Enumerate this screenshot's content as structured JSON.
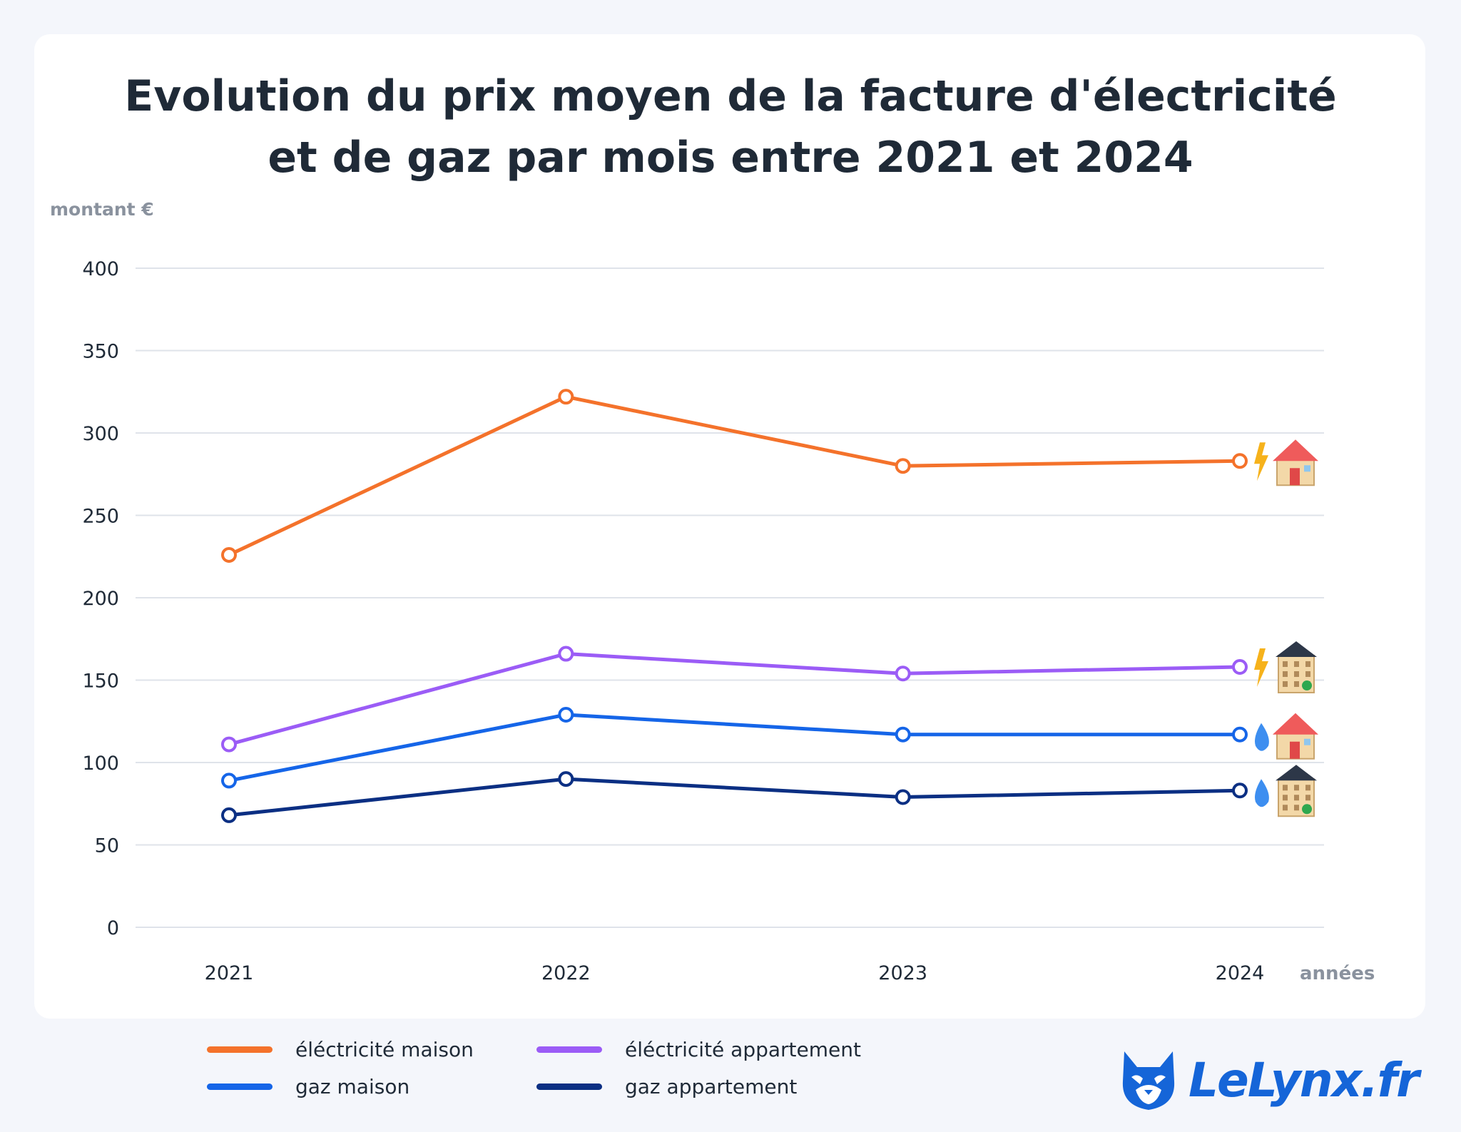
{
  "title": {
    "line1": "Evolution du prix moyen de la facture d'électricité",
    "line2": "et de gaz par mois entre 2021 et 2024"
  },
  "colors": {
    "electricite_maison": "#f4722b",
    "electricite_appartement": "#9b5cf6",
    "gaz_maison": "#1565e8",
    "gaz_appartement": "#0b2f83",
    "grid": "#dfe3ea",
    "axis_label": "#8a929e",
    "brand": "#1565d8"
  },
  "chart_data": {
    "type": "line",
    "title": "Evolution du prix moyen de la facture d'électricité et de gaz par mois entre 2021 et 2024",
    "ylabel": "montant €",
    "xlabel": "années",
    "ylim": [
      0,
      400
    ],
    "yticks": [
      0,
      50,
      100,
      150,
      200,
      250,
      300,
      350,
      400
    ],
    "categories": [
      "2021",
      "2022",
      "2023",
      "2024"
    ],
    "grid": true,
    "legend_position": "bottom",
    "series": [
      {
        "name": "éléctricité maison",
        "key": "electricite_maison",
        "icon": "lightning-house-icon",
        "values": [
          226,
          322,
          280,
          283
        ]
      },
      {
        "name": "éléctricité appartement",
        "key": "electricite_appartement",
        "icon": "lightning-apartment-icon",
        "values": [
          111,
          166,
          154,
          158
        ]
      },
      {
        "name": "gaz maison",
        "key": "gaz_maison",
        "icon": "gas-house-icon",
        "values": [
          89,
          129,
          117,
          117
        ]
      },
      {
        "name": "gaz appartement",
        "key": "gaz_appartement",
        "icon": "gas-apartment-icon",
        "values": [
          68,
          90,
          79,
          83
        ]
      }
    ]
  },
  "legend": {
    "items": [
      {
        "label": "éléctricité maison",
        "key": "electricite_maison"
      },
      {
        "label": "éléctricité appartement",
        "key": "electricite_appartement"
      },
      {
        "label": "gaz maison",
        "key": "gaz_maison"
      },
      {
        "label": "gaz appartement",
        "key": "gaz_appartement"
      }
    ]
  },
  "logo": {
    "text": "LeLynx.fr",
    "icon": "lynx-head-icon"
  }
}
